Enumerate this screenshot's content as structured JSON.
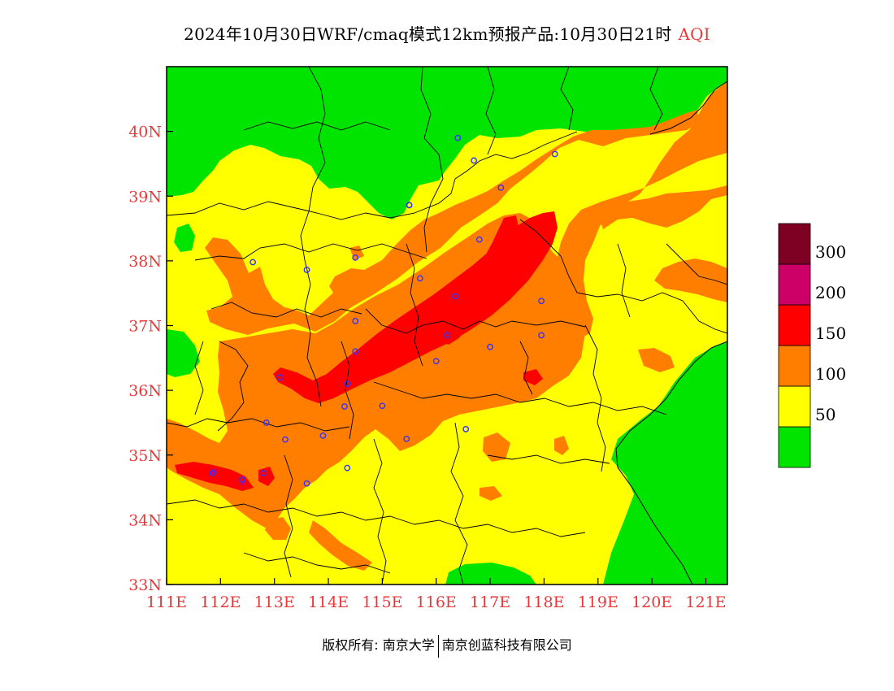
{
  "title": {
    "main": "2024年10月30日WRF/cmaq模式12km预报产品:10月30日21时",
    "variable": "AQI"
  },
  "map": {
    "lon_range": [
      111,
      121.4
    ],
    "lat_range": [
      33,
      41
    ],
    "x_ticks": [
      {
        "value": 111,
        "label": "111E"
      },
      {
        "value": 112,
        "label": "112E"
      },
      {
        "value": 113,
        "label": "113E"
      },
      {
        "value": 114,
        "label": "114E"
      },
      {
        "value": 115,
        "label": "115E"
      },
      {
        "value": 116,
        "label": "116E"
      },
      {
        "value": 117,
        "label": "117E"
      },
      {
        "value": 118,
        "label": "118E"
      },
      {
        "value": 119,
        "label": "119E"
      },
      {
        "value": 120,
        "label": "120E"
      },
      {
        "value": 121,
        "label": "121E"
      }
    ],
    "y_ticks": [
      {
        "value": 33,
        "label": "33N"
      },
      {
        "value": 34,
        "label": "34N"
      },
      {
        "value": 35,
        "label": "35N"
      },
      {
        "value": 36,
        "label": "36N"
      },
      {
        "value": 37,
        "label": "37N"
      },
      {
        "value": 38,
        "label": "38N"
      },
      {
        "value": 39,
        "label": "39N"
      },
      {
        "value": 40,
        "label": "40N"
      }
    ],
    "station_points": [
      [
        116.4,
        39.9
      ],
      [
        116.7,
        39.55
      ],
      [
        117.2,
        39.13
      ],
      [
        118.2,
        39.65
      ],
      [
        115.5,
        38.86
      ],
      [
        115.5,
        38.86
      ],
      [
        116.8,
        38.33
      ],
      [
        114.5,
        38.05
      ],
      [
        112.6,
        37.98
      ],
      [
        113.6,
        37.86
      ],
      [
        115.7,
        37.73
      ],
      [
        116.35,
        37.45
      ],
      [
        117.95,
        37.38
      ],
      [
        114.5,
        37.07
      ],
      [
        117.95,
        36.85
      ],
      [
        116.2,
        36.85
      ],
      [
        117.0,
        36.67
      ],
      [
        114.5,
        36.6
      ],
      [
        116.0,
        36.45
      ],
      [
        113.1,
        36.2
      ],
      [
        114.35,
        36.1
      ],
      [
        112.85,
        35.5
      ],
      [
        114.3,
        35.75
      ],
      [
        115.0,
        35.76
      ],
      [
        116.55,
        35.4
      ],
      [
        113.2,
        35.24
      ],
      [
        113.9,
        35.3
      ],
      [
        115.45,
        35.25
      ],
      [
        111.85,
        34.72
      ],
      [
        112.4,
        34.62
      ],
      [
        112.8,
        34.72
      ],
      [
        114.35,
        34.8
      ],
      [
        113.6,
        34.56
      ]
    ]
  },
  "legend": {
    "levels": [
      {
        "label": "",
        "color": "#00e400"
      },
      {
        "label": "50",
        "color": "#ffff00"
      },
      {
        "label": "100",
        "color": "#ff7e00"
      },
      {
        "label": "150",
        "color": "#ff0000"
      },
      {
        "label": "200",
        "color": "#cc0066"
      },
      {
        "label": "300",
        "color": "#7e0023"
      }
    ]
  },
  "colors": {
    "good": "#00e400",
    "moderate": "#ffff00",
    "usg": "#ff7e00",
    "unhealthy": "#ff0000",
    "very_unhealthy": "#cc0066",
    "hazardous": "#7e0023",
    "tick": "#e8393a",
    "station": "#3333ff"
  },
  "footer": {
    "left": "版权所有: 南京大学",
    "right": "南京创蓝科技有限公司"
  }
}
